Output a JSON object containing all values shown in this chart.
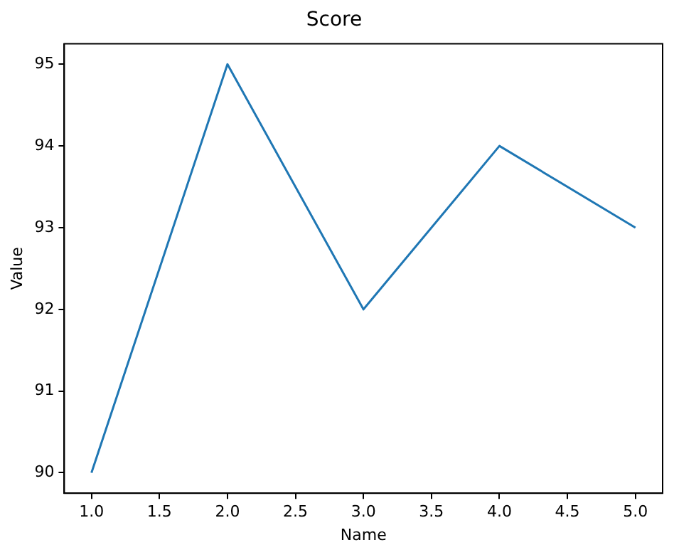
{
  "chart_data": {
    "type": "line",
    "title": "Score",
    "xlabel": "Name",
    "ylabel": "Value",
    "x": [
      1,
      2,
      3,
      4,
      5
    ],
    "series": [
      {
        "color": "#1f77b4",
        "values": [
          90,
          95,
          92,
          94,
          93
        ]
      }
    ],
    "xlim": [
      0.8,
      5.2
    ],
    "ylim": [
      89.75,
      95.25
    ],
    "xticks": [
      {
        "value": 1,
        "label": "1.0"
      },
      {
        "value": 1.5,
        "label": "1.5"
      },
      {
        "value": 2,
        "label": "2.0"
      },
      {
        "value": 2.5,
        "label": "2.5"
      },
      {
        "value": 3,
        "label": "3.0"
      },
      {
        "value": 3.5,
        "label": "3.5"
      },
      {
        "value": 4,
        "label": "4.0"
      },
      {
        "value": 4.5,
        "label": "4.5"
      },
      {
        "value": 5,
        "label": "5.0"
      }
    ],
    "yticks": [
      90,
      91,
      92,
      93,
      94,
      95
    ],
    "grid": false,
    "legend": false,
    "marker": "none",
    "line_style": "solid"
  }
}
